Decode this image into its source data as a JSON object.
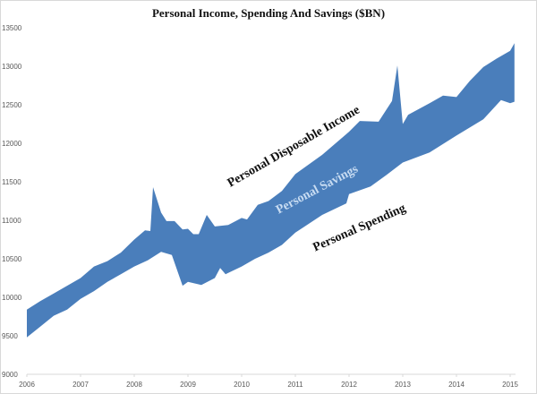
{
  "chart_data": {
    "type": "area",
    "title": "Personal Income, Spending And Savings ($BN)",
    "xlabel": "",
    "ylabel": "",
    "xlim": [
      2006,
      2015.1
    ],
    "ylim": [
      9000,
      13500
    ],
    "x_ticks": [
      "2006",
      "2007",
      "2008",
      "2009",
      "2010",
      "2011",
      "2012",
      "2013",
      "2014",
      "2015"
    ],
    "y_ticks": [
      "9000",
      "9500",
      "10000",
      "10500",
      "11000",
      "11500",
      "12000",
      "12500",
      "13000",
      "13500"
    ],
    "grid": false,
    "fill_color": "#4a7ebb",
    "annotations": {
      "income": "Personal Disposable Income",
      "savings": "Personal Savings",
      "spending": "Personal Spending"
    },
    "series": [
      {
        "name": "Personal Disposable Income",
        "x": [
          2006.0,
          2006.25,
          2006.5,
          2006.75,
          2007.0,
          2007.25,
          2007.5,
          2007.75,
          2008.0,
          2008.2,
          2008.3,
          2008.35,
          2008.5,
          2008.6,
          2008.75,
          2008.9,
          2009.0,
          2009.1,
          2009.2,
          2009.35,
          2009.5,
          2009.75,
          2010.0,
          2010.1,
          2010.3,
          2010.5,
          2010.75,
          2011.0,
          2011.5,
          2012.0,
          2012.2,
          2012.55,
          2012.8,
          2012.9,
          2013.0,
          2013.1,
          2013.5,
          2013.75,
          2014.0,
          2014.25,
          2014.5,
          2014.75,
          2015.0,
          2015.08
        ],
        "values": [
          9840,
          9950,
          10050,
          10150,
          10250,
          10400,
          10470,
          10580,
          10750,
          10870,
          10860,
          11430,
          11100,
          10990,
          10990,
          10880,
          10890,
          10820,
          10820,
          11070,
          10920,
          10940,
          11030,
          11010,
          11200,
          11250,
          11380,
          11600,
          11850,
          12150,
          12290,
          12280,
          12550,
          13010,
          12250,
          12370,
          12520,
          12620,
          12600,
          12810,
          12990,
          13100,
          13200,
          13300
        ]
      },
      {
        "name": "Personal Spending",
        "x": [
          2006.0,
          2006.25,
          2006.5,
          2006.75,
          2007.0,
          2007.25,
          2007.5,
          2007.75,
          2008.0,
          2008.25,
          2008.5,
          2008.7,
          2008.9,
          2009.0,
          2009.25,
          2009.5,
          2009.6,
          2009.7,
          2010.0,
          2010.25,
          2010.5,
          2010.75,
          2011.0,
          2011.5,
          2011.95,
          2012.0,
          2012.4,
          2012.7,
          2013.0,
          2013.5,
          2014.0,
          2014.5,
          2014.83,
          2015.0,
          2015.08
        ],
        "values": [
          9480,
          9620,
          9760,
          9840,
          9980,
          10080,
          10200,
          10300,
          10400,
          10480,
          10590,
          10550,
          10150,
          10200,
          10160,
          10250,
          10380,
          10300,
          10400,
          10500,
          10580,
          10680,
          10840,
          11070,
          11220,
          11340,
          11440,
          11590,
          11750,
          11880,
          12100,
          12310,
          12560,
          12520,
          12540
        ]
      }
    ]
  }
}
